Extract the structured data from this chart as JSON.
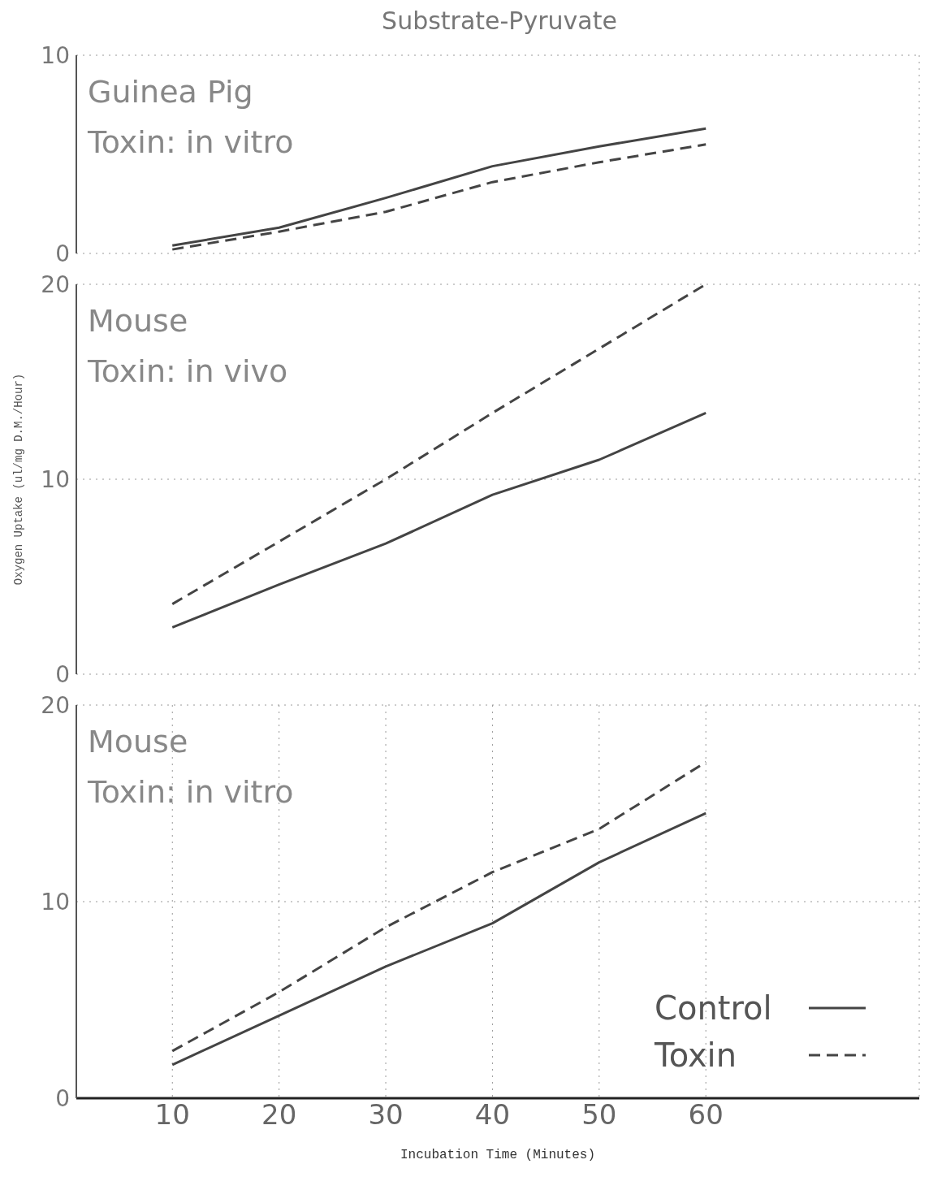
{
  "chart_data": [
    {
      "type": "line",
      "title": "Substrate-Pyruvate",
      "annotations": [
        "Guinea Pig",
        "Toxin: in vitro"
      ],
      "x": [
        10,
        20,
        30,
        40,
        50,
        60
      ],
      "xlim": [
        1,
        80
      ],
      "xticks": [
        10,
        20,
        30,
        40,
        50,
        60
      ],
      "ylim": [
        0,
        10
      ],
      "yticks": [
        0,
        10
      ],
      "tick_labels": "y",
      "grid": true,
      "marker": "none",
      "series": [
        {
          "color": "#444444",
          "line_style": "solid",
          "values": [
            0.4,
            1.3,
            2.8,
            4.4,
            5.4,
            6.3
          ]
        },
        {
          "color": "#444444",
          "line_style": "dashed",
          "values": [
            0.2,
            1.1,
            2.1,
            3.6,
            4.6,
            5.5
          ]
        }
      ]
    },
    {
      "type": "line",
      "ylabel": "Oxygen Uptake (ul/mg D.M./Hour)",
      "annotations": [
        "Mouse",
        "Toxin: in vivo"
      ],
      "x": [
        10,
        20,
        30,
        40,
        50,
        60
      ],
      "xlim": [
        1,
        80
      ],
      "xticks": [
        10,
        20,
        30,
        40,
        50,
        60
      ],
      "ylim": [
        0,
        20
      ],
      "yticks": [
        0,
        10,
        20
      ],
      "tick_labels": "y",
      "grid": true,
      "marker": "none",
      "series": [
        {
          "color": "#444444",
          "line_style": "solid",
          "values": [
            2.4,
            4.6,
            6.7,
            9.2,
            11.0,
            13.4
          ]
        },
        {
          "color": "#444444",
          "line_style": "dashed",
          "values": [
            3.6,
            6.8,
            10.0,
            13.4,
            16.7,
            20.0
          ]
        }
      ]
    },
    {
      "type": "line",
      "xlabel": "Incubation Time (Minutes)",
      "annotations": [
        "Mouse",
        "Toxin: in vitro"
      ],
      "x": [
        10,
        20,
        30,
        40,
        50,
        60
      ],
      "xlim": [
        1,
        80
      ],
      "xticks": [
        10,
        20,
        30,
        40,
        50,
        60
      ],
      "ylim": [
        0,
        20
      ],
      "yticks": [
        0,
        10,
        20
      ],
      "grid": true,
      "marker": "none",
      "legend": "bottom right",
      "series": [
        {
          "name": "Control",
          "color": "#444444",
          "line_style": "solid",
          "values": [
            1.7,
            4.2,
            6.7,
            8.9,
            12.0,
            14.5
          ]
        },
        {
          "name": "Toxin",
          "color": "#444444",
          "line_style": "dashed",
          "values": [
            2.4,
            5.4,
            8.7,
            11.5,
            13.7,
            17.1
          ]
        }
      ]
    }
  ]
}
